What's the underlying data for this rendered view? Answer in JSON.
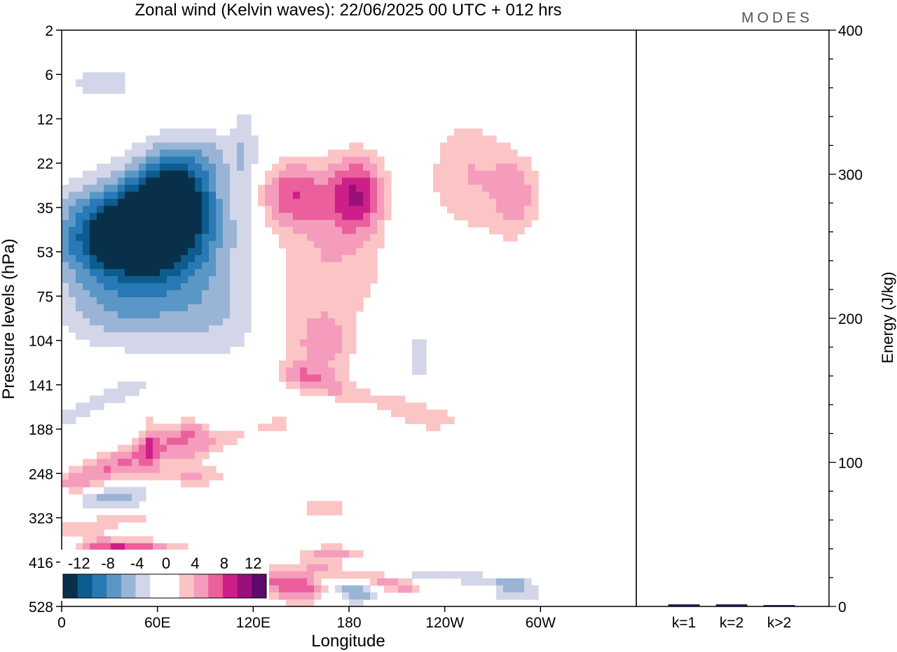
{
  "chart_data": [
    {
      "type": "heatmap",
      "title": "Zonal wind (Kelvin waves):  22/06/2025  00 UTC  + 012 hrs",
      "xlabel": "Longitude",
      "ylabel": "Pressure levels (hPa)",
      "x_ticks": [
        "0",
        "60E",
        "120E",
        "180",
        "120W",
        "60W"
      ],
      "y_ticks": [
        "2",
        "6",
        "12",
        "22",
        "35",
        "53",
        "75",
        "104",
        "141",
        "188",
        "248",
        "323",
        "416",
        "528"
      ],
      "colorbar": {
        "labels": [
          "-12",
          "-8",
          "-4",
          "0",
          "4",
          "8",
          "12"
        ],
        "colors": [
          "#08304a",
          "#0d5c8e",
          "#2879b5",
          "#5a97c6",
          "#9ab4d6",
          "#d2d6e8",
          "#ffffff",
          "#ffffff",
          "#fbc5c5",
          "#f59cbd",
          "#ea5f9c",
          "#cc1f8a",
          "#9b0f7a",
          "#5c0a6b"
        ]
      },
      "blobs": [
        {
          "x": 42,
          "y": 210,
          "v": -13,
          "sx": 40,
          "sy": 48
        },
        {
          "x": 70,
          "y": 175,
          "v": -13,
          "sx": 26,
          "sy": 45
        },
        {
          "x": 55,
          "y": 240,
          "v": -6,
          "sx": 60,
          "sy": 60
        },
        {
          "x": 88,
          "y": 130,
          "v": -3,
          "sx": 30,
          "sy": 30
        },
        {
          "x": 95,
          "y": 300,
          "v": -3,
          "sx": 40,
          "sy": 50
        },
        {
          "x": 35,
          "y": 300,
          "v": -3,
          "sx": 35,
          "sy": 35
        },
        {
          "x": 25,
          "y": 55,
          "v": -4,
          "sx": 20,
          "sy": 14
        },
        {
          "x": 55,
          "y": 430,
          "v": 4,
          "sx": 5,
          "sy": 35
        },
        {
          "x": 115,
          "y": 140,
          "v": -3,
          "sx": 8,
          "sy": 75
        },
        {
          "x": 120,
          "y": 430,
          "v": -2,
          "sx": 9,
          "sy": 25
        },
        {
          "x": 145,
          "y": 170,
          "v": 7,
          "sx": 22,
          "sy": 35
        },
        {
          "x": 185,
          "y": 170,
          "v": 9,
          "sx": 18,
          "sy": 40
        },
        {
          "x": 165,
          "y": 240,
          "v": 4,
          "sx": 40,
          "sy": 70
        },
        {
          "x": 150,
          "y": 330,
          "v": 3,
          "sx": 20,
          "sy": 50
        },
        {
          "x": 170,
          "y": 330,
          "v": 3,
          "sx": 15,
          "sy": 35
        },
        {
          "x": 180,
          "y": 50,
          "v": 1,
          "sx": 20,
          "sy": 30
        },
        {
          "x": 190,
          "y": 400,
          "v": -2,
          "sx": 12,
          "sy": 50
        },
        {
          "x": 210,
          "y": 260,
          "v": -2,
          "sx": 8,
          "sy": 100
        },
        {
          "x": 225,
          "y": 340,
          "v": -3,
          "sx": 8,
          "sy": 35
        },
        {
          "x": 255,
          "y": 150,
          "v": 4,
          "sx": 25,
          "sy": 60
        },
        {
          "x": 285,
          "y": 170,
          "v": 5,
          "sx": 15,
          "sy": 50
        },
        {
          "x": 295,
          "y": 100,
          "v": -2,
          "sx": 20,
          "sy": 40
        },
        {
          "x": 300,
          "y": 250,
          "v": -2,
          "sx": 15,
          "sy": 40
        },
        {
          "x": 305,
          "y": 20,
          "v": 1,
          "sx": 15,
          "sy": 25
        },
        {
          "x": 35,
          "y": 490,
          "v": -4,
          "sx": 20,
          "sy": 14
        },
        {
          "x": 75,
          "y": 464,
          "v": 5,
          "sx": 25,
          "sy": 14
        },
        {
          "x": 140,
          "y": 520,
          "v": -2,
          "sx": 25,
          "sy": 12
        },
        {
          "x": 100,
          "y": 550,
          "v": 2,
          "sx": 40,
          "sy": 12
        },
        {
          "x": 165,
          "y": 499,
          "v": 3,
          "sx": 20,
          "sy": 18
        },
        {
          "x": 170,
          "y": 570,
          "v": -3,
          "sx": 15,
          "sy": 14
        },
        {
          "x": 125,
          "y": 570,
          "v": 5,
          "sx": 15,
          "sy": 12
        },
        {
          "x": 170,
          "y": 545,
          "v": 5,
          "sx": 20,
          "sy": 8
        },
        {
          "x": 260,
          "y": 625,
          "v": 2,
          "sx": 15,
          "sy": 20
        },
        {
          "x": 215,
          "y": 600,
          "v": 1,
          "sx": 20,
          "sy": 20
        },
        {
          "x": 20,
          "y": 560,
          "v": -3,
          "sx": 30,
          "sy": 12
        },
        {
          "x": 45,
          "y": 545,
          "v": 6,
          "sx": 30,
          "sy": 14
        },
        {
          "x": 150,
          "y": 580,
          "v": 8,
          "sx": 20,
          "sy": 15
        },
        {
          "x": 185,
          "y": 585,
          "v": -6,
          "sx": 15,
          "sy": 12
        },
        {
          "x": 285,
          "y": 585,
          "v": -4,
          "sx": 15,
          "sy": 12
        }
      ],
      "bands": [
        {
          "x0": 10,
          "y0": 470,
          "x1": 80,
          "y1": 420,
          "w": 14,
          "v": 6
        },
        {
          "x0": 80,
          "y0": 440,
          "x1": 135,
          "y1": 410,
          "w": 10,
          "v": 3
        },
        {
          "x0": 0,
          "y0": 405,
          "x1": 45,
          "y1": 370,
          "w": 10,
          "v": -3
        },
        {
          "x0": 25,
          "y0": 540,
          "x1": 95,
          "y1": 565,
          "w": 12,
          "v": 5
        },
        {
          "x0": 40,
          "y0": 590,
          "x1": 115,
          "y1": 600,
          "w": 10,
          "v": -2
        },
        {
          "x0": 0,
          "y0": 520,
          "x1": 50,
          "y1": 505,
          "w": 10,
          "v": 3
        },
        {
          "x0": 0,
          "y0": 490,
          "x1": 70,
          "y1": 470,
          "w": 10,
          "v": -2
        },
        {
          "x0": 150,
          "y0": 360,
          "x1": 235,
          "y1": 405,
          "w": 12,
          "v": 4
        },
        {
          "x0": 240,
          "y0": 430,
          "x1": 300,
          "y1": 400,
          "w": 10,
          "v": -2
        },
        {
          "x0": 160,
          "y0": 560,
          "x1": 215,
          "y1": 580,
          "w": 8,
          "v": 5
        },
        {
          "x0": 220,
          "y0": 565,
          "x1": 285,
          "y1": 575,
          "w": 7,
          "v": -3
        }
      ],
      "energy": {
        "type": "bar",
        "categories": [
          "k=1",
          "k=2",
          "k>2"
        ],
        "values": [
          2,
          2,
          1
        ],
        "ylabel": "Energy (J/kg)",
        "ylim": [
          0,
          400
        ],
        "y_ticks": [
          "0",
          "100",
          "200",
          "300",
          "400"
        ],
        "color": "#1a1a8c"
      }
    }
  ],
  "brand": "MODES"
}
